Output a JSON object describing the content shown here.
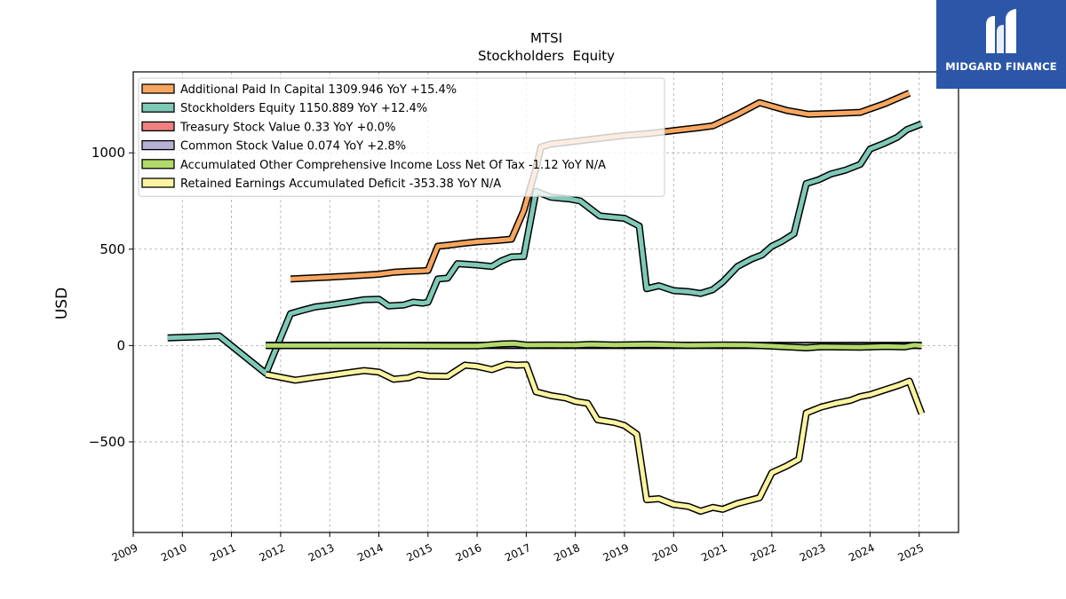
{
  "chart_data": {
    "type": "line",
    "title": "MTSI",
    "subtitle": "Stockholders  Equity",
    "ylabel": "USD",
    "xlabel": "",
    "xlim": [
      2009.0,
      2025.8
    ],
    "ylim": [
      -970,
      1420
    ],
    "x_ticks": [
      "2009",
      "2010",
      "2011",
      "2012",
      "2013",
      "2014",
      "2015",
      "2016",
      "2017",
      "2018",
      "2019",
      "2020",
      "2021",
      "2022",
      "2023",
      "2024",
      "2025"
    ],
    "y_ticks": [
      -500,
      0,
      500,
      1000
    ],
    "y_tick_labels": [
      "−500",
      "0",
      "500",
      "1000"
    ],
    "grid": true,
    "legend_position": "top-left",
    "series": [
      {
        "name": "Additional Paid In Capital",
        "legend": "Additional Paid In Capital  1309.946 YoY +15.4%",
        "color": "#f7a660",
        "points": [
          [
            2012.2,
            345
          ],
          [
            2013.0,
            355
          ],
          [
            2013.5,
            362
          ],
          [
            2013.9,
            368
          ],
          [
            2014.0,
            370
          ],
          [
            2014.3,
            380
          ],
          [
            2014.6,
            385
          ],
          [
            2014.9,
            388
          ],
          [
            2015.0,
            390
          ],
          [
            2015.2,
            515
          ],
          [
            2015.4,
            520
          ],
          [
            2015.7,
            530
          ],
          [
            2016.0,
            538
          ],
          [
            2016.4,
            545
          ],
          [
            2016.7,
            552
          ],
          [
            2016.95,
            700
          ],
          [
            2017.2,
            920
          ],
          [
            2017.3,
            1030
          ],
          [
            2017.5,
            1045
          ],
          [
            2018.0,
            1060
          ],
          [
            2018.5,
            1075
          ],
          [
            2019.0,
            1090
          ],
          [
            2019.5,
            1100
          ],
          [
            2020.0,
            1115
          ],
          [
            2020.5,
            1130
          ],
          [
            2020.8,
            1140
          ],
          [
            2021.3,
            1200
          ],
          [
            2021.75,
            1260
          ],
          [
            2022.3,
            1220
          ],
          [
            2022.75,
            1200
          ],
          [
            2023.3,
            1205
          ],
          [
            2023.8,
            1210
          ],
          [
            2024.3,
            1255
          ],
          [
            2024.8,
            1310
          ]
        ]
      },
      {
        "name": "Stockholders Equity",
        "legend": "Stockholders Equity  1150.889 YoY +12.4%",
        "color": "#7fc9b7",
        "points": [
          [
            2009.7,
            40
          ],
          [
            2010.3,
            45
          ],
          [
            2010.75,
            50
          ],
          [
            2011.7,
            -145
          ],
          [
            2012.2,
            165
          ],
          [
            2012.4,
            180
          ],
          [
            2012.7,
            200
          ],
          [
            2013.0,
            210
          ],
          [
            2013.4,
            225
          ],
          [
            2013.7,
            238
          ],
          [
            2014.0,
            240
          ],
          [
            2014.2,
            205
          ],
          [
            2014.5,
            210
          ],
          [
            2014.7,
            225
          ],
          [
            2014.9,
            220
          ],
          [
            2015.0,
            225
          ],
          [
            2015.2,
            345
          ],
          [
            2015.4,
            350
          ],
          [
            2015.6,
            425
          ],
          [
            2016.0,
            418
          ],
          [
            2016.3,
            410
          ],
          [
            2016.5,
            440
          ],
          [
            2016.7,
            460
          ],
          [
            2016.95,
            462
          ],
          [
            2017.2,
            800
          ],
          [
            2017.5,
            770
          ],
          [
            2017.9,
            760
          ],
          [
            2018.1,
            750
          ],
          [
            2018.5,
            672
          ],
          [
            2018.8,
            665
          ],
          [
            2019.0,
            660
          ],
          [
            2019.3,
            620
          ],
          [
            2019.45,
            295
          ],
          [
            2019.7,
            310
          ],
          [
            2020.0,
            285
          ],
          [
            2020.3,
            280
          ],
          [
            2020.55,
            270
          ],
          [
            2020.8,
            290
          ],
          [
            2021.0,
            330
          ],
          [
            2021.3,
            410
          ],
          [
            2021.6,
            450
          ],
          [
            2021.8,
            470
          ],
          [
            2022.0,
            515
          ],
          [
            2022.2,
            540
          ],
          [
            2022.45,
            580
          ],
          [
            2022.7,
            840
          ],
          [
            2022.95,
            860
          ],
          [
            2023.2,
            890
          ],
          [
            2023.5,
            910
          ],
          [
            2023.8,
            940
          ],
          [
            2024.0,
            1020
          ],
          [
            2024.3,
            1050
          ],
          [
            2024.55,
            1080
          ],
          [
            2024.75,
            1120
          ],
          [
            2025.05,
            1150
          ]
        ]
      },
      {
        "name": "Treasury Stock Value",
        "legend": "Treasury Stock Value  0.33 YoY +0.0%",
        "color": "#f08080",
        "points": [
          [
            2011.7,
            0.33
          ],
          [
            2025.05,
            0.33
          ]
        ]
      },
      {
        "name": "Common Stock Value",
        "legend": "Common Stock Value  0.074 YoY +2.8%",
        "color": "#b7b1d6",
        "points": [
          [
            2011.7,
            0.07
          ],
          [
            2025.05,
            0.074
          ]
        ]
      },
      {
        "name": "Accumulated Other Comprehensive Income Loss Net Of Tax",
        "legend": "Accumulated Other Comprehensive Income Loss Net Of Tax  -1.12 YoY N/A",
        "color": "#b2d96b",
        "points": [
          [
            2011.7,
            0
          ],
          [
            2013.0,
            0
          ],
          [
            2014.0,
            0
          ],
          [
            2015.0,
            -1
          ],
          [
            2016.0,
            -2
          ],
          [
            2016.5,
            8
          ],
          [
            2016.75,
            10
          ],
          [
            2017.0,
            2
          ],
          [
            2017.5,
            3
          ],
          [
            2018.0,
            2
          ],
          [
            2018.3,
            6
          ],
          [
            2018.8,
            3
          ],
          [
            2019.5,
            5
          ],
          [
            2020.3,
            1
          ],
          [
            2021.0,
            3
          ],
          [
            2021.5,
            2
          ],
          [
            2022.0,
            -3
          ],
          [
            2022.7,
            -12
          ],
          [
            2023.0,
            -6
          ],
          [
            2023.8,
            -9
          ],
          [
            2024.3,
            -5
          ],
          [
            2024.7,
            -7
          ],
          [
            2024.9,
            2
          ],
          [
            2025.05,
            -1.12
          ]
        ]
      },
      {
        "name": "Retained Earnings Accumulated Deficit",
        "legend": "Retained Earnings Accumulated Deficit  -353.38 YoY N/A",
        "color": "#fbf3a0",
        "points": [
          [
            2011.7,
            -150
          ],
          [
            2012.3,
            -180
          ],
          [
            2012.7,
            -165
          ],
          [
            2013.0,
            -155
          ],
          [
            2013.4,
            -140
          ],
          [
            2013.7,
            -130
          ],
          [
            2014.0,
            -138
          ],
          [
            2014.3,
            -175
          ],
          [
            2014.6,
            -168
          ],
          [
            2014.8,
            -150
          ],
          [
            2015.0,
            -158
          ],
          [
            2015.4,
            -160
          ],
          [
            2015.75,
            -102
          ],
          [
            2016.0,
            -108
          ],
          [
            2016.3,
            -125
          ],
          [
            2016.6,
            -98
          ],
          [
            2016.8,
            -102
          ],
          [
            2017.0,
            -100
          ],
          [
            2017.2,
            -240
          ],
          [
            2017.5,
            -260
          ],
          [
            2017.8,
            -272
          ],
          [
            2018.0,
            -290
          ],
          [
            2018.25,
            -300
          ],
          [
            2018.45,
            -385
          ],
          [
            2018.8,
            -400
          ],
          [
            2019.0,
            -415
          ],
          [
            2019.25,
            -460
          ],
          [
            2019.45,
            -800
          ],
          [
            2019.7,
            -795
          ],
          [
            2020.0,
            -825
          ],
          [
            2020.3,
            -835
          ],
          [
            2020.55,
            -860
          ],
          [
            2020.8,
            -840
          ],
          [
            2021.0,
            -850
          ],
          [
            2021.3,
            -820
          ],
          [
            2021.75,
            -790
          ],
          [
            2022.0,
            -660
          ],
          [
            2022.3,
            -625
          ],
          [
            2022.55,
            -590
          ],
          [
            2022.7,
            -350
          ],
          [
            2023.0,
            -320
          ],
          [
            2023.3,
            -300
          ],
          [
            2023.6,
            -285
          ],
          [
            2023.8,
            -265
          ],
          [
            2024.0,
            -255
          ],
          [
            2024.3,
            -230
          ],
          [
            2024.6,
            -205
          ],
          [
            2024.8,
            -185
          ],
          [
            2025.05,
            -353.38
          ]
        ]
      }
    ]
  },
  "logo": {
    "text": "MIDGARD FINANCE",
    "icon": "midgard-logo-icon"
  }
}
